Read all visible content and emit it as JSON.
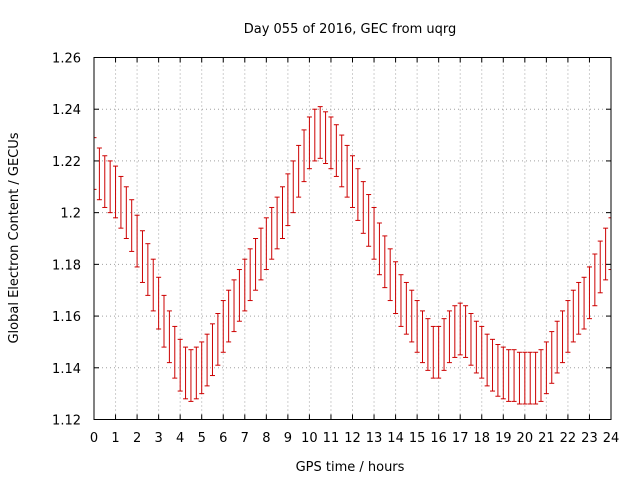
{
  "chart_data": {
    "type": "scatter",
    "title": "Day 055 of 2016, GEC from uqrg",
    "xlabel": "GPS time / hours",
    "ylabel": "Global Electron Content / GECUs",
    "xlim": [
      0,
      24
    ],
    "ylim": [
      1.12,
      1.26
    ],
    "xticks": [
      0,
      1,
      2,
      3,
      4,
      5,
      6,
      7,
      8,
      9,
      10,
      11,
      12,
      13,
      14,
      15,
      16,
      17,
      18,
      19,
      20,
      21,
      22,
      23,
      24
    ],
    "xtick_labels": [
      "0",
      "1",
      "2",
      "3",
      "4",
      "5",
      "6",
      "7",
      "8",
      "9",
      "10",
      "11",
      "12",
      "13",
      "14",
      "15",
      "16",
      "17",
      "18",
      "19",
      "20",
      "21",
      "22",
      "23",
      "24"
    ],
    "yticks": [
      1.12,
      1.14,
      1.16,
      1.18,
      1.2,
      1.22,
      1.24,
      1.26
    ],
    "ytick_labels": [
      "1.12",
      "1.14",
      "1.16",
      "1.18",
      "1.2",
      "1.22",
      "1.24",
      "1.26"
    ],
    "grid": true,
    "legend": "none",
    "series_color": "#cc0000",
    "error_half_width": 0.01,
    "x": [
      0,
      0.25,
      0.5,
      0.75,
      1,
      1.25,
      1.5,
      1.75,
      2,
      2.25,
      2.5,
      2.75,
      3,
      3.25,
      3.5,
      3.75,
      4,
      4.25,
      4.5,
      4.75,
      5,
      5.25,
      5.5,
      5.75,
      6,
      6.25,
      6.5,
      6.75,
      7,
      7.25,
      7.5,
      7.75,
      8,
      8.25,
      8.5,
      8.75,
      9,
      9.25,
      9.5,
      9.75,
      10,
      10.25,
      10.5,
      10.75,
      11,
      11.25,
      11.5,
      11.75,
      12,
      12.25,
      12.5,
      12.75,
      13,
      13.25,
      13.5,
      13.75,
      14,
      14.25,
      14.5,
      14.75,
      15,
      15.25,
      15.5,
      15.75,
      16,
      16.25,
      16.5,
      16.75,
      17,
      17.25,
      17.5,
      17.75,
      18,
      18.25,
      18.5,
      18.75,
      19,
      19.25,
      19.5,
      19.75,
      20,
      20.25,
      20.5,
      20.75,
      21,
      21.25,
      21.5,
      21.75,
      22,
      22.25,
      22.5,
      22.75,
      23,
      23.25,
      23.5,
      23.75,
      24
    ],
    "y": [
      1.219,
      1.215,
      1.212,
      1.21,
      1.208,
      1.204,
      1.2,
      1.195,
      1.189,
      1.183,
      1.178,
      1.172,
      1.165,
      1.158,
      1.152,
      1.146,
      1.141,
      1.138,
      1.137,
      1.138,
      1.14,
      1.143,
      1.147,
      1.151,
      1.156,
      1.16,
      1.164,
      1.168,
      1.172,
      1.176,
      1.18,
      1.184,
      1.188,
      1.192,
      1.196,
      1.2,
      1.205,
      1.21,
      1.216,
      1.222,
      1.227,
      1.23,
      1.231,
      1.229,
      1.227,
      1.224,
      1.22,
      1.216,
      1.212,
      1.207,
      1.202,
      1.197,
      1.192,
      1.186,
      1.181,
      1.176,
      1.171,
      1.166,
      1.163,
      1.16,
      1.156,
      1.152,
      1.149,
      1.146,
      1.146,
      1.149,
      1.152,
      1.154,
      1.155,
      1.154,
      1.151,
      1.148,
      1.146,
      1.143,
      1.141,
      1.139,
      1.138,
      1.137,
      1.137,
      1.136,
      1.136,
      1.136,
      1.136,
      1.137,
      1.14,
      1.144,
      1.148,
      1.152,
      1.156,
      1.16,
      1.163,
      1.165,
      1.169,
      1.174,
      1.179,
      1.184,
      1.188
    ]
  }
}
